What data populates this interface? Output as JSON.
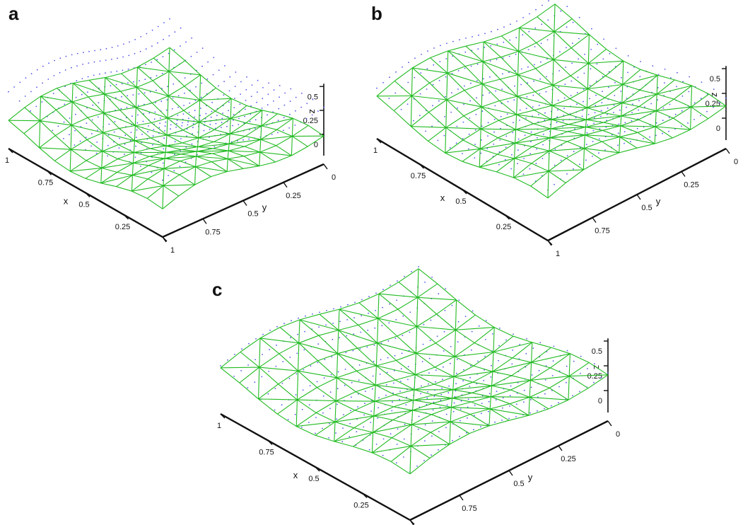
{
  "colors": {
    "mesh": "#22bb22",
    "dots": "#5555ee",
    "axis": "#111111"
  },
  "chart_data": [
    {
      "type": "3d-wireframe-surface",
      "panel_label": "a",
      "axes": {
        "x_label": "x",
        "y_label": "y",
        "z_label": "z",
        "x_ticks": [
          "0",
          "0.25",
          "0.5",
          "0.75",
          "1"
        ],
        "y_ticks": [
          "0",
          "0.25",
          "0.5",
          "0.75",
          "1"
        ],
        "z_ticks": [
          "0",
          "0.25",
          "0.5"
        ],
        "xlim": [
          0,
          1
        ],
        "ylim": [
          0,
          1
        ],
        "zlim": [
          -0.2,
          0.55
        ]
      },
      "series": [
        {
          "style": "solid wireframe",
          "color": "#22bb22",
          "z_offset": 0.0
        },
        {
          "style": "dotted",
          "color": "#5555ee",
          "z_offset": 0.3
        }
      ]
    },
    {
      "type": "3d-wireframe-surface",
      "panel_label": "b",
      "axes": {
        "x_label": "x",
        "y_label": "y",
        "z_label": "z",
        "x_ticks": [
          "0",
          "0.25",
          "0.5",
          "0.75",
          "1"
        ],
        "y_ticks": [
          "0",
          "0.25",
          "0.5",
          "0.75",
          "1"
        ],
        "z_ticks": [
          "0",
          "0.25",
          "0.5"
        ],
        "xlim": [
          0,
          1
        ],
        "ylim": [
          0,
          1
        ],
        "zlim": [
          -0.2,
          0.55
        ]
      },
      "series": [
        {
          "style": "solid wireframe",
          "color": "#22bb22",
          "z_offset": 0.0
        },
        {
          "style": "dotted",
          "color": "#5555ee",
          "z_offset": 0.08
        }
      ]
    },
    {
      "type": "3d-wireframe-surface",
      "panel_label": "c",
      "axes": {
        "x_label": "x",
        "y_label": "y",
        "z_label": "z",
        "x_ticks": [
          "0",
          "0.25",
          "0.5",
          "0.75",
          "1"
        ],
        "y_ticks": [
          "0",
          "0.25",
          "0.5",
          "0.75",
          "1"
        ],
        "z_ticks": [
          "0",
          "0.25",
          "0.5"
        ],
        "xlim": [
          0,
          1
        ],
        "ylim": [
          0,
          1
        ],
        "zlim": [
          -0.2,
          0.55
        ]
      },
      "series": [
        {
          "style": "solid wireframe",
          "color": "#22bb22",
          "z_offset": 0.0
        },
        {
          "style": "dotted",
          "color": "#5555ee",
          "z_offset": 0.02
        }
      ]
    }
  ]
}
